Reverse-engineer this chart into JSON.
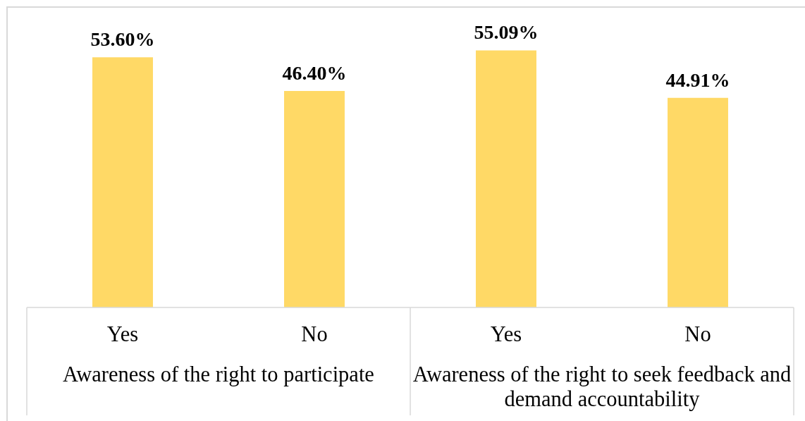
{
  "chart_data": {
    "type": "bar",
    "categories": [
      "Awareness of the right to participate",
      "Awareness of the right to seek feedback and demand accountability"
    ],
    "series": [
      {
        "name": "Yes",
        "color": "#ffd966",
        "values": [
          53.6,
          55.09
        ],
        "value_labels": [
          "53.60%",
          "55.09%"
        ]
      },
      {
        "name": "No",
        "color": "#ffd966",
        "values": [
          46.4,
          44.91
        ],
        "value_labels": [
          "46.40%",
          "44.91%"
        ]
      }
    ],
    "tick_labels": "x"
  }
}
